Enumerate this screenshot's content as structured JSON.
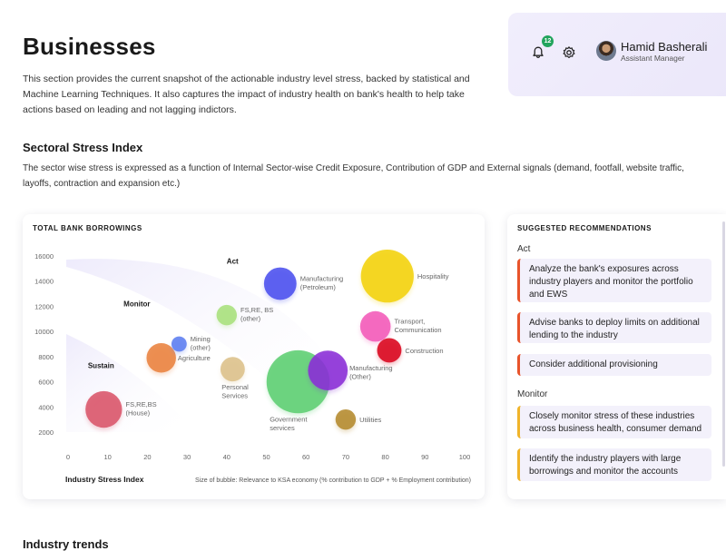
{
  "header": {
    "title": "Businesses",
    "intro": "This section provides the current snapshot of the actionable industry level stress, backed by statistical and Machine Learning Techniques. It  also captures the impact of industry health on bank's health to help take actions based on leading  and not lagging indictors."
  },
  "user": {
    "notification_count": "12",
    "name": "Hamid Basherali",
    "role": "Assistant Manager"
  },
  "sector": {
    "title": "Sectoral Stress Index",
    "description": "The sector wise stress is expressed as a function of Internal Sector-wise Credit Exposure, Contribution of GDP and External signals (demand, footfall, website traffic, layoffs, contraction and expansion etc.)"
  },
  "chart_card": {
    "heading": "TOTAL BANK BORROWINGS",
    "footnote": "Size of bubble: Relevance to KSA economy (% contribution to GDP + % Employment contribution)"
  },
  "chart_data": {
    "type": "scatter",
    "title": "TOTAL BANK BORROWINGS",
    "xlabel": "Industry Stress Index",
    "ylabel": "",
    "xlim": [
      0,
      100
    ],
    "ylim": [
      2000,
      16000
    ],
    "x_ticks": [
      0,
      10,
      20,
      30,
      40,
      50,
      60,
      70,
      80,
      90,
      100
    ],
    "y_ticks": [
      2000,
      4000,
      6000,
      8000,
      10000,
      12000,
      14000,
      16000
    ],
    "zones": [
      "Act",
      "Monitor",
      "Sustain"
    ],
    "points": [
      {
        "label": "FS,RE,BS (House)",
        "x": 9,
        "y": 3800,
        "size": 3.6,
        "color": "#d9556a"
      },
      {
        "label": "Agriculture",
        "x": 23.5,
        "y": 7900,
        "size": 2.9,
        "color": "#e9823f"
      },
      {
        "label": "Mining (other)",
        "x": 28,
        "y": 9000,
        "size": 1.5,
        "color": "#5c7df0"
      },
      {
        "label": "FS,RE, BS (other)",
        "x": 40,
        "y": 11300,
        "size": 2.0,
        "color": "#a8e07c"
      },
      {
        "label": "Personal Services",
        "x": 41.5,
        "y": 7000,
        "size": 2.4,
        "color": "#dcc08a"
      },
      {
        "label": "Manufacturing (Petroleum)",
        "x": 53.5,
        "y": 13800,
        "size": 3.2,
        "color": "#4b50ee"
      },
      {
        "label": "Government services",
        "x": 58,
        "y": 6000,
        "size": 6.2,
        "color": "#5dce72"
      },
      {
        "label": "Manufacturing (Other)",
        "x": 65.5,
        "y": 6900,
        "size": 3.9,
        "color": "#8a2ed6"
      },
      {
        "label": "Utilities",
        "x": 70,
        "y": 3000,
        "size": 2.0,
        "color": "#b48a2e"
      },
      {
        "label": "Transport, Communication",
        "x": 77.5,
        "y": 10400,
        "size": 3.0,
        "color": "#f25ab8"
      },
      {
        "label": "Construction",
        "x": 81,
        "y": 8500,
        "size": 2.4,
        "color": "#d9041d"
      },
      {
        "label": "Hospitality",
        "x": 80.5,
        "y": 14400,
        "size": 5.2,
        "color": "#f2d20b"
      }
    ]
  },
  "recommendations": {
    "heading": "SUGGESTED RECOMMENDATIONS",
    "groups": [
      {
        "label": "Act",
        "items": [
          "Analyze the bank's exposures across industry players and monitor the portfolio and EWS",
          "Advise banks to deploy limits on additional lending to the industry",
          "Consider additional provisioning"
        ]
      },
      {
        "label": "Monitor",
        "items": [
          "Closely monitor stress of these industries across business health, consumer demand",
          "Identify the industry players with large borrowings and monitor the accounts"
        ]
      }
    ]
  },
  "trends": {
    "title": "Industry trends"
  }
}
